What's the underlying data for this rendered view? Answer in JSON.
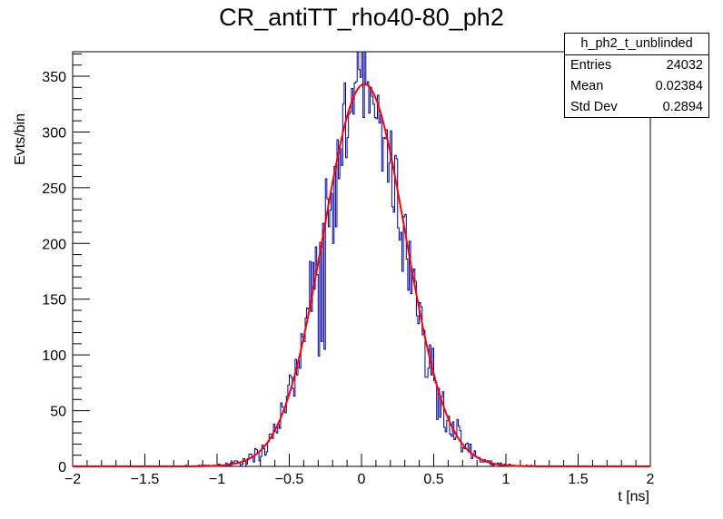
{
  "chart_data": {
    "type": "histogram",
    "title": "CR_antiTT_rho40-80_ph2",
    "xlabel": "t [ns]",
    "ylabel": "Evts/bin",
    "xlim": [
      -2,
      2
    ],
    "ylim": [
      0,
      372
    ],
    "x_ticks": [
      -2,
      -1.5,
      -1,
      -0.5,
      0,
      0.5,
      1,
      1.5,
      2
    ],
    "x_tick_labels": [
      "−2",
      "−1.5",
      "−1",
      "−0.5",
      "0",
      "0.5",
      "1",
      "1.5",
      "2"
    ],
    "y_ticks": [
      0,
      50,
      100,
      150,
      200,
      250,
      300,
      350
    ],
    "y_tick_labels": [
      "0",
      "50",
      "100",
      "150",
      "200",
      "250",
      "300",
      "350"
    ],
    "histogram": {
      "name": "h_ph2_t_unblinded",
      "color": "#000099",
      "bin_width": 0.01,
      "x_start": -2.0,
      "entries": 24032,
      "mean": 0.02384,
      "std_dev": 0.2894,
      "sample_points": [
        [
          -0.3,
          99
        ],
        [
          -0.28,
          112
        ],
        [
          -0.26,
          105
        ],
        [
          -0.2,
          200
        ],
        [
          -0.18,
          215
        ],
        [
          -0.16,
          258
        ],
        [
          -0.14,
          270
        ],
        [
          -0.1,
          295
        ],
        [
          -0.08,
          318
        ],
        [
          -0.06,
          316
        ],
        [
          -0.04,
          345
        ],
        [
          -0.02,
          356
        ],
        [
          0.0,
          372
        ],
        [
          0.02,
          372
        ],
        [
          0.04,
          345
        ],
        [
          0.06,
          340
        ],
        [
          0.08,
          325
        ],
        [
          0.1,
          312
        ],
        [
          0.18,
          255
        ],
        [
          0.22,
          228
        ],
        [
          0.32,
          158
        ],
        [
          0.34,
          155
        ],
        [
          0.44,
          80
        ],
        [
          0.46,
          88
        ],
        [
          0.52,
          42
        ]
      ]
    },
    "fit": {
      "type": "gaussian",
      "color": "#ff0000",
      "amplitude": 343,
      "mean": 0.02,
      "sigma": 0.285
    },
    "stats_box": {
      "name": "h_ph2_t_unblinded",
      "rows": [
        {
          "label": "Entries",
          "value": "24032"
        },
        {
          "label": "Mean",
          "value": "0.02384"
        },
        {
          "label": "Std Dev",
          "value": "0.2894"
        }
      ]
    }
  }
}
